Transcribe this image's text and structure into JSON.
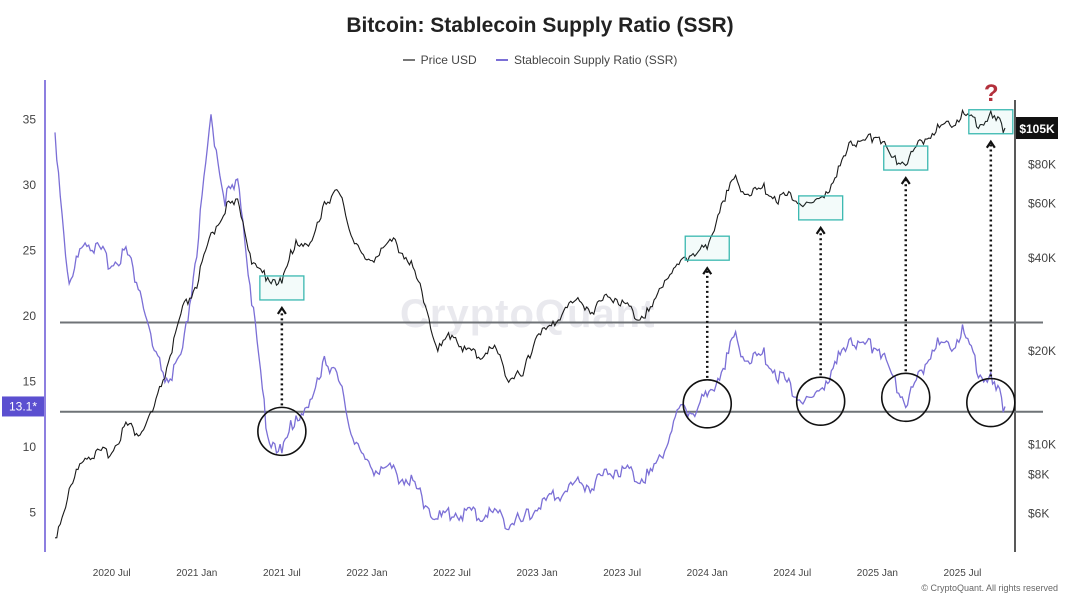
{
  "title": "Bitcoin: Stablecoin Supply Ratio (SSR)",
  "legend": [
    {
      "label": "Price USD",
      "color": "#777777"
    },
    {
      "label": "Stablecoin Supply Ratio (SSR)",
      "color": "#7b6fd6"
    }
  ],
  "watermark": "CryptoQuant",
  "copyright": "© CryptoQuant. All rights reserved",
  "colors": {
    "price": "#1a1a1a",
    "ssr": "#7b6fd6",
    "highlight": "#3ab8b0",
    "badge": "#5b4fd0"
  },
  "chart_data": {
    "type": "line",
    "title": "Bitcoin: Stablecoin Supply Ratio (SSR)",
    "x_tick_labels": [
      "2020 Jul",
      "2021 Jan",
      "2021 Jul",
      "2022 Jan",
      "2022 Jul",
      "2023 Jan",
      "2023 Jul",
      "2024 Jan",
      "2024 Jul",
      "2025 Jan",
      "2025 Jul"
    ],
    "x_range": [
      "2020-03",
      "2025-10"
    ],
    "y_left": {
      "ticks": [
        5,
        10,
        15,
        20,
        25,
        30,
        35
      ],
      "range": [
        2,
        38
      ],
      "label": ""
    },
    "y_right": {
      "scale": "log",
      "ticks": [
        "$6K",
        "$8K",
        "$10K",
        "$20K",
        "$40K",
        "$60K",
        "$80K"
      ],
      "tick_values": [
        6000,
        8000,
        10000,
        20000,
        40000,
        60000,
        80000
      ],
      "range": [
        4500,
        150000
      ]
    },
    "series": [
      {
        "name": "Price USD",
        "axis": "right",
        "points": [
          [
            "2020-03",
            5000
          ],
          [
            "2020-04",
            7000
          ],
          [
            "2020-05",
            9200
          ],
          [
            "2020-06",
            9300
          ],
          [
            "2020-07",
            9500
          ],
          [
            "2020-08",
            11600
          ],
          [
            "2020-09",
            10800
          ],
          [
            "2020-10",
            13000
          ],
          [
            "2020-11",
            18500
          ],
          [
            "2020-12",
            27000
          ],
          [
            "2021-01",
            33000
          ],
          [
            "2021-02",
            47000
          ],
          [
            "2021-03",
            58000
          ],
          [
            "2021-04",
            60000
          ],
          [
            "2021-05",
            37000
          ],
          [
            "2021-06",
            35000
          ],
          [
            "2021-07",
            33000
          ],
          [
            "2021-08",
            46000
          ],
          [
            "2021-09",
            43000
          ],
          [
            "2021-10",
            61000
          ],
          [
            "2021-11",
            65000
          ],
          [
            "2021-12",
            47000
          ],
          [
            "2022-01",
            38000
          ],
          [
            "2022-02",
            43000
          ],
          [
            "2022-03",
            45000
          ],
          [
            "2022-04",
            39000
          ],
          [
            "2022-05",
            30000
          ],
          [
            "2022-06",
            20000
          ],
          [
            "2022-07",
            23000
          ],
          [
            "2022-08",
            20000
          ],
          [
            "2022-09",
            19400
          ],
          [
            "2022-10",
            20500
          ],
          [
            "2022-11",
            16500
          ],
          [
            "2022-12",
            16600
          ],
          [
            "2023-01",
            23000
          ],
          [
            "2023-02",
            23500
          ],
          [
            "2023-03",
            28000
          ],
          [
            "2023-04",
            29000
          ],
          [
            "2023-05",
            27000
          ],
          [
            "2023-06",
            30500
          ],
          [
            "2023-07",
            29000
          ],
          [
            "2023-08",
            26000
          ],
          [
            "2023-09",
            27000
          ],
          [
            "2023-10",
            34500
          ],
          [
            "2023-11",
            37700
          ],
          [
            "2023-12",
            42000
          ],
          [
            "2024-01",
            42500
          ],
          [
            "2024-02",
            61000
          ],
          [
            "2024-03",
            71000
          ],
          [
            "2024-04",
            64000
          ],
          [
            "2024-05",
            67000
          ],
          [
            "2024-06",
            62000
          ],
          [
            "2024-07",
            64000
          ],
          [
            "2024-08",
            58000
          ],
          [
            "2024-09",
            63000
          ],
          [
            "2024-10",
            70000
          ],
          [
            "2024-11",
            96000
          ],
          [
            "2024-12",
            93000
          ],
          [
            "2025-01",
            102000
          ],
          [
            "2025-02",
            84000
          ],
          [
            "2025-03",
            82000
          ],
          [
            "2025-04",
            94000
          ],
          [
            "2025-05",
            104000
          ],
          [
            "2025-06",
            107000
          ],
          [
            "2025-07",
            117000
          ],
          [
            "2025-08",
            108000
          ],
          [
            "2025-09",
            114000
          ],
          [
            "2025-10",
            105000
          ]
        ]
      },
      {
        "name": "Stablecoin Supply Ratio (SSR)",
        "axis": "left",
        "points": [
          [
            "2020-03",
            34
          ],
          [
            "2020-04",
            22
          ],
          [
            "2020-05",
            26
          ],
          [
            "2020-06",
            25
          ],
          [
            "2020-07",
            24
          ],
          [
            "2020-08",
            25
          ],
          [
            "2020-09",
            22
          ],
          [
            "2020-10",
            17
          ],
          [
            "2020-11",
            15
          ],
          [
            "2020-12",
            17
          ],
          [
            "2021-01",
            25
          ],
          [
            "2021-02",
            35
          ],
          [
            "2021-03",
            29
          ],
          [
            "2021-04",
            30
          ],
          [
            "2021-05",
            20
          ],
          [
            "2021-06",
            11
          ],
          [
            "2021-07",
            9.5
          ],
          [
            "2021-08",
            12.5
          ],
          [
            "2021-09",
            13
          ],
          [
            "2021-10",
            17
          ],
          [
            "2021-11",
            15
          ],
          [
            "2021-12",
            11
          ],
          [
            "2022-01",
            8.5
          ],
          [
            "2022-02",
            8.5
          ],
          [
            "2022-03",
            8
          ],
          [
            "2022-04",
            7.5
          ],
          [
            "2022-05",
            6
          ],
          [
            "2022-06",
            4.5
          ],
          [
            "2022-07",
            5
          ],
          [
            "2022-08",
            5
          ],
          [
            "2022-09",
            4.8
          ],
          [
            "2022-10",
            5
          ],
          [
            "2022-11",
            4.3
          ],
          [
            "2022-12",
            4.3
          ],
          [
            "2023-01",
            5.5
          ],
          [
            "2023-02",
            6
          ],
          [
            "2023-03",
            6.8
          ],
          [
            "2023-04",
            7.3
          ],
          [
            "2023-05",
            7.1
          ],
          [
            "2023-06",
            8.2
          ],
          [
            "2023-07",
            8.4
          ],
          [
            "2023-08",
            7.8
          ],
          [
            "2023-09",
            7.9
          ],
          [
            "2023-10",
            10
          ],
          [
            "2023-11",
            12.8
          ],
          [
            "2023-12",
            12.8
          ],
          [
            "2024-01",
            13.8
          ],
          [
            "2024-02",
            16
          ],
          [
            "2024-03",
            18.2
          ],
          [
            "2024-04",
            16.5
          ],
          [
            "2024-05",
            17
          ],
          [
            "2024-06",
            15.5
          ],
          [
            "2024-07",
            14.5
          ],
          [
            "2024-08",
            13.2
          ],
          [
            "2024-09",
            14.5
          ],
          [
            "2024-10",
            16
          ],
          [
            "2024-11",
            18.5
          ],
          [
            "2024-12",
            17.5
          ],
          [
            "2025-01",
            18
          ],
          [
            "2025-02",
            15.5
          ],
          [
            "2025-03",
            13.5
          ],
          [
            "2025-04",
            15.5
          ],
          [
            "2025-05",
            18
          ],
          [
            "2025-06",
            17.5
          ],
          [
            "2025-07",
            19
          ],
          [
            "2025-08",
            16
          ],
          [
            "2025-09",
            15
          ],
          [
            "2025-10",
            13.1
          ]
        ]
      }
    ],
    "horizontal_lines": [
      19.5,
      12.7
    ],
    "current_labels": {
      "ssr": "13.1*",
      "price": "$105K"
    },
    "annotations": [
      {
        "type": "circle",
        "date": "2021-07",
        "ssr": 11.2
      },
      {
        "type": "circle",
        "date": "2024-01",
        "ssr": 13.3
      },
      {
        "type": "circle",
        "date": "2024-09",
        "ssr": 13.5
      },
      {
        "type": "circle",
        "date": "2025-03",
        "ssr": 13.8
      },
      {
        "type": "circle",
        "date": "2025-09",
        "ssr": 13.4
      },
      {
        "type": "box",
        "date": "2021-07",
        "price": 32000
      },
      {
        "type": "box",
        "date": "2024-01",
        "price": 43000
      },
      {
        "type": "box",
        "date": "2024-09",
        "price": 58000
      },
      {
        "type": "box",
        "date": "2025-03",
        "price": 84000
      },
      {
        "type": "box",
        "date": "2025-09",
        "price": 110000
      },
      {
        "type": "question",
        "date": "2025-09",
        "label": "?"
      }
    ]
  }
}
